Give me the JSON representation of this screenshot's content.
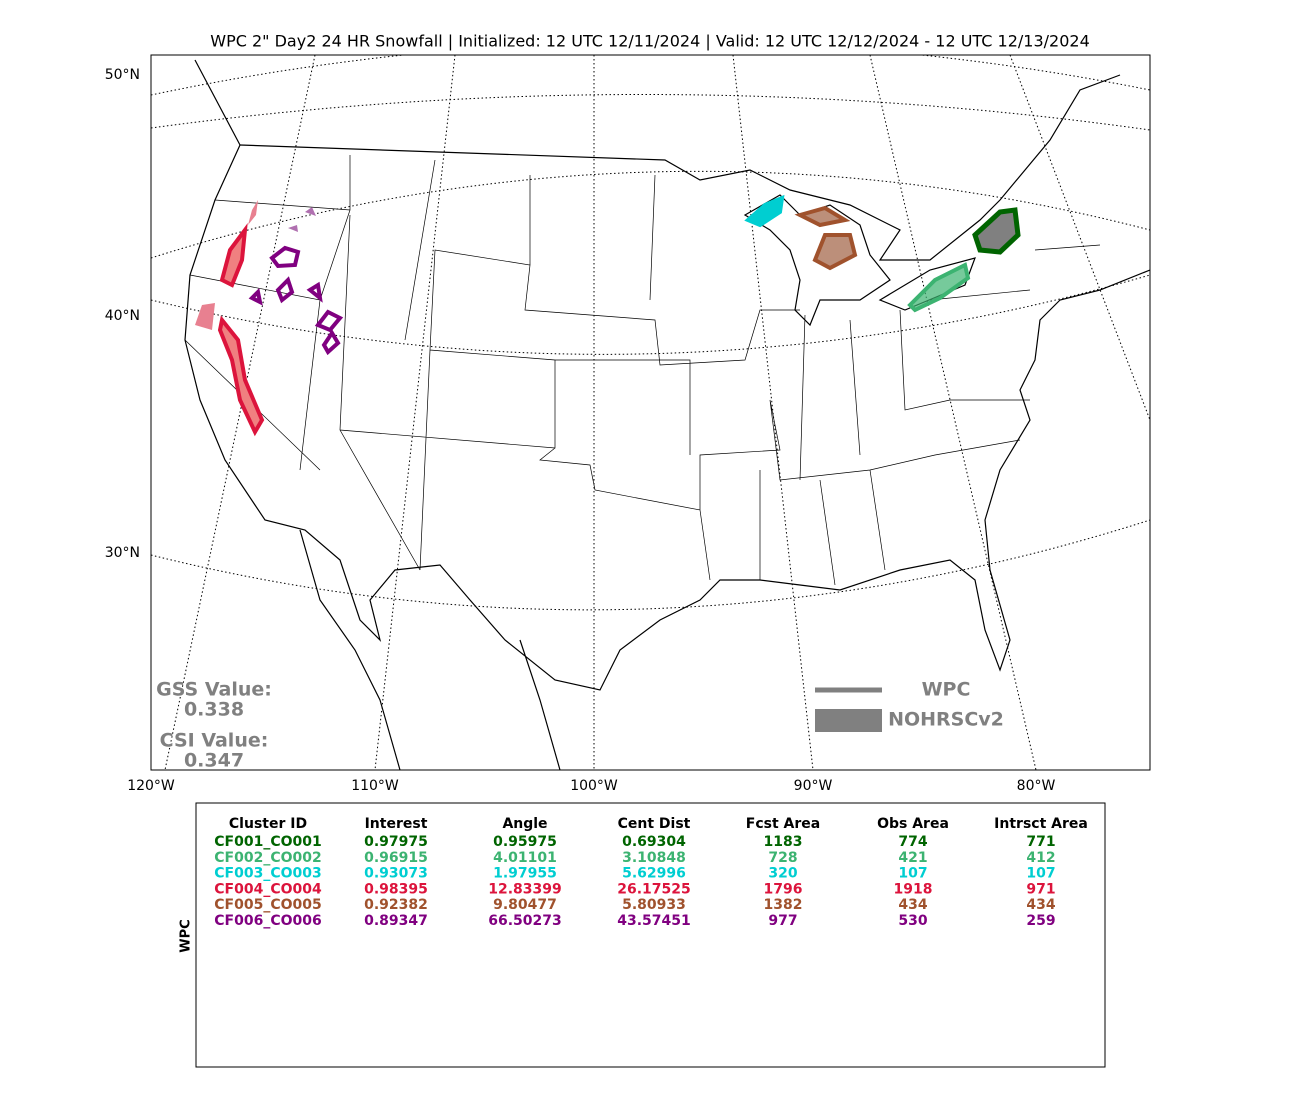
{
  "title": "WPC 2\" Day2 24 HR Snowfall | Initialized: 12 UTC 12/11/2024 | Valid: 12 UTC 12/12/2024 - 12 UTC 12/13/2024",
  "map": {
    "lat_labels": [
      "50°N",
      "40°N",
      "30°N"
    ],
    "lon_labels": [
      "120°W",
      "110°W",
      "100°W",
      "90°W",
      "80°W"
    ]
  },
  "stats": {
    "gss_label": "GSS Value:",
    "gss_value": "0.338",
    "csi_label": "CSI Value:",
    "csi_value": "0.347"
  },
  "legend": {
    "line": "WPC",
    "fill": "NOHRSCv2"
  },
  "table": {
    "side_label": "WPC",
    "header": [
      "Cluster ID",
      "Interest",
      "Angle",
      "Cent Dist",
      "Fcst Area",
      "Obs Area",
      "Intrsct Area"
    ],
    "rows": [
      {
        "color": "#006400",
        "cells": [
          "CF001_CO001",
          "0.97975",
          "0.95975",
          "0.69304",
          "1183",
          "774",
          "771"
        ]
      },
      {
        "color": "#3cb371",
        "cells": [
          "CF002_CO002",
          "0.96915",
          "4.01101",
          "3.10848",
          "728",
          "421",
          "412"
        ]
      },
      {
        "color": "#00ced1",
        "cells": [
          "CF003_CO003",
          "0.93073",
          "1.97955",
          "5.62996",
          "320",
          "107",
          "107"
        ]
      },
      {
        "color": "#dc143c",
        "cells": [
          "CF004_CO004",
          "0.98395",
          "12.83399",
          "26.17525",
          "1796",
          "1918",
          "971"
        ]
      },
      {
        "color": "#a0522d",
        "cells": [
          "CF005_CO005",
          "0.92382",
          "9.80477",
          "5.80933",
          "1382",
          "434",
          "434"
        ]
      },
      {
        "color": "#800080",
        "cells": [
          "CF006_CO006",
          "0.89347",
          "66.50273",
          "43.57451",
          "977",
          "530",
          "259"
        ]
      }
    ]
  }
}
